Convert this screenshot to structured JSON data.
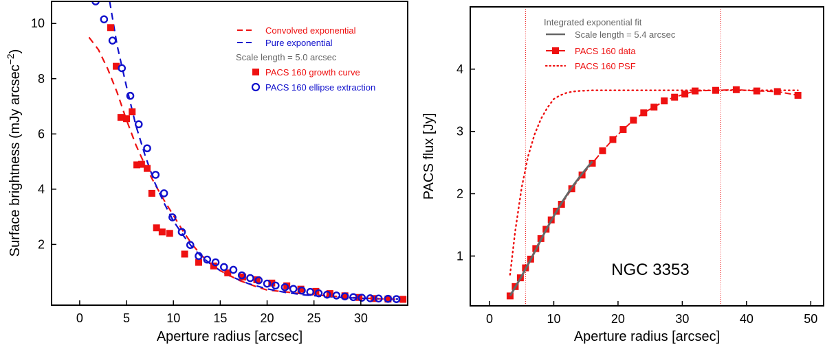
{
  "chart_data": [
    {
      "type": "scatter",
      "xlabel": "Aperture radius [arcsec]",
      "ylabel_main": "Surface brightness (mJy arcsec",
      "ylabel_exp": "−2",
      "ylabel_close": ")",
      "xlim": [
        -3,
        35
      ],
      "ylim": [
        -0.2,
        10.8
      ],
      "xticks": [
        0,
        5,
        10,
        15,
        20,
        25,
        30
      ],
      "yticks": [
        2,
        4,
        6,
        8,
        10
      ],
      "legend": {
        "convolved": "Convolved exponential",
        "pure": "Pure exponential",
        "scale_text": "Scale length =   5.0  arcsec",
        "growth": "PACS 160 growth curve",
        "ellipse": "PACS 160 ellipse extraction"
      },
      "colors": {
        "red": "#ee1111",
        "blue": "#1111cc",
        "gray": "#666666"
      },
      "series": [
        {
          "name": "Convolved exponential",
          "style": "red-dashed",
          "x": [
            1,
            2,
            3,
            4,
            5,
            6,
            7,
            8,
            9,
            10,
            11,
            12,
            13,
            14,
            15,
            17,
            19,
            20,
            22,
            24,
            26,
            28,
            30,
            32,
            34
          ],
          "y": [
            9.5,
            9.05,
            8.35,
            7.5,
            6.5,
            5.6,
            4.85,
            4.2,
            3.6,
            3.05,
            2.5,
            2.0,
            1.6,
            1.3,
            1.05,
            0.7,
            0.45,
            0.35,
            0.28,
            0.2,
            0.15,
            0.1,
            0.06,
            0.03,
            0.01
          ]
        },
        {
          "name": "Pure exponential",
          "style": "blue-dashed",
          "x": [
            3.2,
            4,
            5,
            6,
            7,
            8,
            9,
            10,
            11,
            12,
            13,
            14,
            15,
            16,
            18,
            20,
            22,
            24,
            26,
            28,
            30,
            32,
            34
          ],
          "y": [
            10.8,
            9.2,
            7.7,
            6.3,
            5.2,
            4.25,
            3.5,
            2.85,
            2.35,
            1.9,
            1.56,
            1.28,
            1.05,
            0.86,
            0.58,
            0.39,
            0.26,
            0.17,
            0.12,
            0.08,
            0.05,
            0.03,
            0.02
          ]
        },
        {
          "name": "PACS 160 growth curve",
          "style": "red-square",
          "x": [
            3.3,
            3.9,
            4.4,
            5.0,
            5.6,
            6.1,
            6.6,
            7.2,
            7.7,
            8.2,
            8.8,
            9.6,
            11.2,
            12.7,
            14.3,
            15.8,
            17.4,
            18.9,
            20.5,
            22.1,
            23.6,
            25.2,
            26.7,
            28.3,
            29.8,
            31.4,
            32.9,
            34.5
          ],
          "y": [
            9.85,
            8.45,
            6.6,
            6.55,
            6.8,
            4.88,
            4.9,
            4.75,
            3.85,
            2.6,
            2.45,
            2.4,
            1.65,
            1.35,
            1.22,
            0.97,
            0.82,
            0.72,
            0.6,
            0.5,
            0.38,
            0.3,
            0.22,
            0.14,
            0.08,
            0.04,
            0.02,
            0.01
          ]
        },
        {
          "name": "PACS 160 ellipse extraction",
          "style": "blue-circle",
          "x": [
            1.7,
            2.6,
            3.5,
            4.5,
            5.4,
            6.3,
            7.2,
            8.1,
            9.0,
            9.9,
            10.9,
            11.8,
            12.7,
            13.6,
            14.5,
            15.4,
            16.4,
            17.3,
            18.2,
            19.1,
            20.0,
            20.9,
            21.9,
            22.8,
            23.7,
            24.6,
            25.5,
            26.4,
            27.4,
            28.3,
            29.2,
            30.1,
            31.0,
            31.9,
            32.9,
            33.8
          ],
          "y": [
            10.8,
            10.15,
            9.38,
            8.38,
            7.38,
            6.35,
            5.48,
            4.52,
            3.85,
            2.98,
            2.45,
            1.98,
            1.58,
            1.45,
            1.35,
            1.18,
            1.08,
            0.88,
            0.78,
            0.7,
            0.58,
            0.51,
            0.45,
            0.39,
            0.33,
            0.28,
            0.23,
            0.18,
            0.15,
            0.12,
            0.09,
            0.07,
            0.05,
            0.04,
            0.03,
            0.02
          ]
        }
      ]
    },
    {
      "type": "line",
      "xlabel": "Aperture radius [arcsec]",
      "ylabel": "PACS flux [Jy]",
      "xlim": [
        -3,
        52
      ],
      "ylim": [
        0.2,
        5.0
      ],
      "xticks": [
        0,
        10,
        20,
        30,
        40,
        50
      ],
      "yticks": [
        1,
        2,
        3,
        4
      ],
      "annotation": "NGC 3353",
      "vlines": [
        5.6,
        36.0
      ],
      "legend": {
        "header": "Integrated exponential fit",
        "scale_text": "Scale length =   5.4  arcsec",
        "data": "PACS 160 data",
        "psf": "PACS 160 PSF"
      },
      "series": [
        {
          "name": "PACS 160 data",
          "style": "red-square-line",
          "x": [
            3.2,
            4.0,
            4.8,
            5.6,
            6.4,
            7.2,
            8.0,
            8.8,
            9.6,
            10.4,
            11.2,
            12.8,
            14.4,
            16.0,
            17.6,
            19.2,
            20.8,
            22.4,
            24.0,
            25.6,
            27.2,
            28.8,
            30.4,
            32.0,
            35.2,
            38.4,
            41.6,
            44.8,
            48.0
          ],
          "y": [
            0.36,
            0.51,
            0.65,
            0.81,
            0.95,
            1.12,
            1.28,
            1.43,
            1.58,
            1.72,
            1.83,
            2.08,
            2.3,
            2.49,
            2.69,
            2.87,
            3.03,
            3.18,
            3.3,
            3.39,
            3.49,
            3.55,
            3.6,
            3.65,
            3.66,
            3.67,
            3.65,
            3.64,
            3.58
          ]
        },
        {
          "name": "Integrated exponential fit",
          "style": "gray-line",
          "x": [
            3.2,
            4.0,
            4.8,
            5.6,
            6.4,
            7.2,
            8.0,
            8.8,
            9.6,
            10.4,
            11.2,
            12.8,
            14.4,
            16.0
          ],
          "y": [
            0.36,
            0.5,
            0.64,
            0.79,
            0.94,
            1.1,
            1.26,
            1.42,
            1.57,
            1.71,
            1.85,
            2.1,
            2.32,
            2.52
          ]
        },
        {
          "name": "PACS 160 PSF",
          "style": "red-dotted",
          "x": [
            3.2,
            4.0,
            5.0,
            6.0,
            7.0,
            8.0,
            9.0,
            10.0,
            11.0,
            12.0,
            13.0,
            14.0,
            16.0,
            20.0,
            30.0,
            40.0,
            48.0
          ],
          "y": [
            0.7,
            1.4,
            2.1,
            2.6,
            2.95,
            3.2,
            3.38,
            3.52,
            3.58,
            3.62,
            3.64,
            3.65,
            3.66,
            3.66,
            3.66,
            3.66,
            3.66
          ]
        }
      ]
    }
  ]
}
